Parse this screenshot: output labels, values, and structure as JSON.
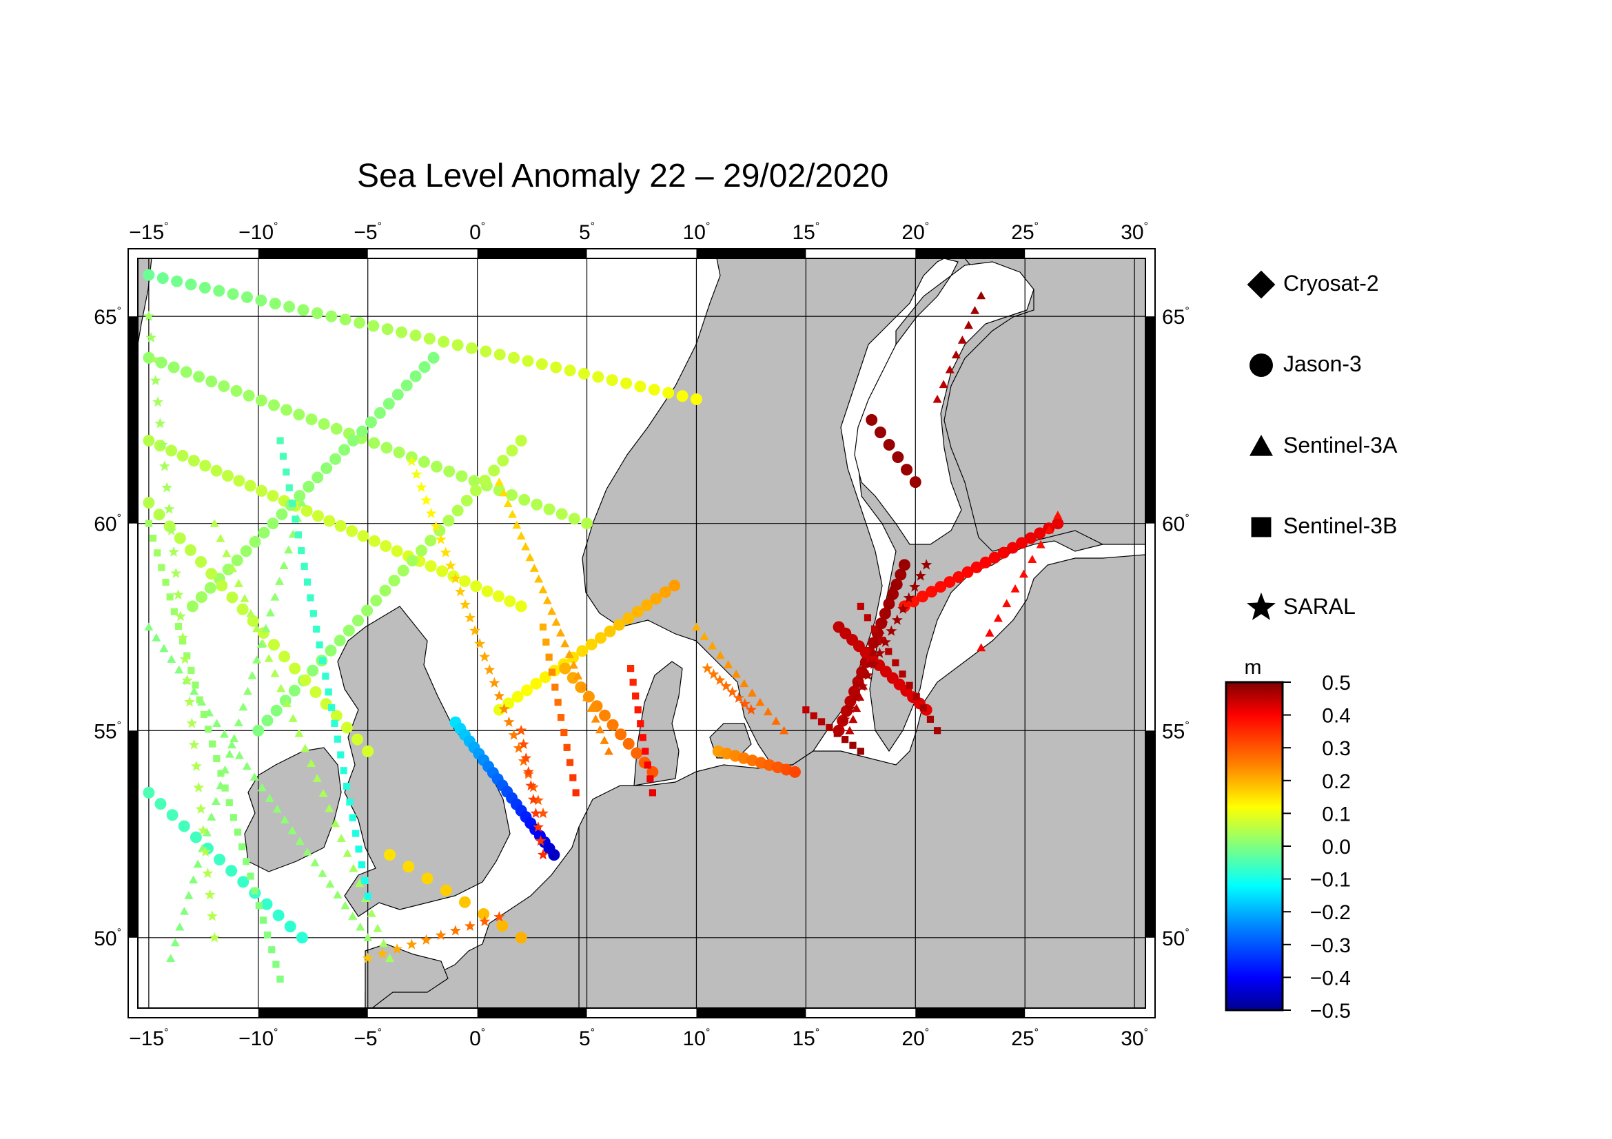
{
  "title": "Sea Level Anomaly 22 – 29/02/2020",
  "map": {
    "lon_range": [
      -15.5,
      30.5
    ],
    "lat_range": [
      48.3,
      66.4
    ],
    "lon_ticks": [
      "−15",
      "−10",
      "−5",
      "0",
      "5",
      "10",
      "15",
      "20",
      "25",
      "30"
    ],
    "lat_ticks": [
      "50",
      "55",
      "60",
      "65"
    ],
    "degree_symbol": "°",
    "land_color": "#bdbdbd",
    "sea_color": "#ffffff"
  },
  "legend": {
    "items": [
      {
        "label": "Cryosat-2",
        "marker": "diamond"
      },
      {
        "label": "Jason-3",
        "marker": "circle"
      },
      {
        "label": "Sentinel-3A",
        "marker": "triangle"
      },
      {
        "label": "Sentinel-3B",
        "marker": "square"
      },
      {
        "label": "SARAL",
        "marker": "star"
      }
    ]
  },
  "colorbar": {
    "unit": "m",
    "labels": [
      "0.5",
      "0.4",
      "0.3",
      "0.2",
      "0.1",
      "0.0",
      "−0.1",
      "−0.2",
      "−0.3",
      "−0.4",
      "−0.5"
    ],
    "min": -0.5,
    "max": 0.5,
    "colors": [
      "#00008f",
      "#0000ff",
      "#0080ff",
      "#00ffff",
      "#80ff80",
      "#ffff00",
      "#ff8000",
      "#ff0000",
      "#800000"
    ]
  },
  "chart_data": {
    "type": "scatter",
    "xlabel": "",
    "ylabel": "",
    "xlim": [
      -15.5,
      30.5
    ],
    "ylim": [
      48.3,
      66.4
    ],
    "value_unit": "m",
    "tracks": [
      {
        "sat": "Jason-3",
        "from": [
          -1,
          55.2
        ],
        "to": [
          3.5,
          52.0
        ],
        "n": 22,
        "v0": -0.15,
        "v1": -0.45
      },
      {
        "sat": "Jason-3",
        "from": [
          -15,
          53.5
        ],
        "to": [
          -8,
          50.0
        ],
        "n": 14,
        "v0": -0.05,
        "v1": -0.08
      },
      {
        "sat": "Jason-3",
        "from": [
          -15,
          62.0
        ],
        "to": [
          2,
          58.0
        ],
        "n": 34,
        "v0": 0.05,
        "v1": 0.1
      },
      {
        "sat": "Jason-3",
        "from": [
          -15,
          64.0
        ],
        "to": [
          5,
          60.0
        ],
        "n": 36,
        "v0": 0.02,
        "v1": 0.05
      },
      {
        "sat": "Jason-3",
        "from": [
          -15,
          66.0
        ],
        "to": [
          10,
          63.0
        ],
        "n": 40,
        "v0": -0.02,
        "v1": 0.12
      },
      {
        "sat": "Jason-3",
        "from": [
          -13,
          58.0
        ],
        "to": [
          -2,
          64.0
        ],
        "n": 28,
        "v0": 0.03,
        "v1": 0.0
      },
      {
        "sat": "Jason-3",
        "from": [
          -10,
          55.0
        ],
        "to": [
          2,
          62.0
        ],
        "n": 30,
        "v0": 0.0,
        "v1": 0.06
      },
      {
        "sat": "Jason-3",
        "from": [
          -15,
          60.5
        ],
        "to": [
          -5,
          54.5
        ],
        "n": 22,
        "v0": 0.05,
        "v1": 0.08
      },
      {
        "sat": "Jason-3",
        "from": [
          1,
          55.5
        ],
        "to": [
          9,
          58.5
        ],
        "n": 20,
        "v0": 0.1,
        "v1": 0.22
      },
      {
        "sat": "Jason-3",
        "from": [
          4,
          56.5
        ],
        "to": [
          8,
          54.0
        ],
        "n": 12,
        "v0": 0.2,
        "v1": 0.3
      },
      {
        "sat": "Jason-3",
        "from": [
          11,
          54.5
        ],
        "to": [
          14.5,
          54.0
        ],
        "n": 10,
        "v0": 0.22,
        "v1": 0.32
      },
      {
        "sat": "Jason-3",
        "from": [
          16.5,
          55.0
        ],
        "to": [
          19.5,
          59.0
        ],
        "n": 18,
        "v0": 0.45,
        "v1": 0.48
      },
      {
        "sat": "Jason-3",
        "from": [
          16.5,
          57.5
        ],
        "to": [
          20.5,
          55.5
        ],
        "n": 14,
        "v0": 0.45,
        "v1": 0.42
      },
      {
        "sat": "Jason-3",
        "from": [
          19.5,
          58.0
        ],
        "to": [
          26.5,
          60.0
        ],
        "n": 18,
        "v0": 0.38,
        "v1": 0.42
      },
      {
        "sat": "Jason-3",
        "from": [
          18,
          62.5
        ],
        "to": [
          20.0,
          61.0
        ],
        "n": 6,
        "v0": 0.48,
        "v1": 0.48
      },
      {
        "sat": "Jason-3",
        "from": [
          -4,
          52.0
        ],
        "to": [
          2,
          50.0
        ],
        "n": 8,
        "v0": 0.15,
        "v1": 0.2
      },
      {
        "sat": "Sentinel-3A",
        "from": [
          -15,
          57.5
        ],
        "to": [
          -5,
          50.0
        ],
        "n": 30,
        "v0": 0.0,
        "v1": 0.02
      },
      {
        "sat": "Sentinel-3A",
        "from": [
          -12,
          60.0
        ],
        "to": [
          -4,
          49.5
        ],
        "n": 30,
        "v0": 0.05,
        "v1": 0.03
      },
      {
        "sat": "Sentinel-3A",
        "from": [
          -8,
          60.5
        ],
        "to": [
          -14,
          49.5
        ],
        "n": 30,
        "v0": 0.02,
        "v1": 0.0
      },
      {
        "sat": "Sentinel-3A",
        "from": [
          1,
          61.0
        ],
        "to": [
          6,
          54.5
        ],
        "n": 26,
        "v0": 0.15,
        "v1": 0.25
      },
      {
        "sat": "Sentinel-3A",
        "from": [
          10,
          57.5
        ],
        "to": [
          14,
          55.0
        ],
        "n": 12,
        "v0": 0.2,
        "v1": 0.28
      },
      {
        "sat": "Sentinel-3A",
        "from": [
          17,
          55.0
        ],
        "to": [
          19,
          58.5
        ],
        "n": 14,
        "v0": 0.45,
        "v1": 0.48
      },
      {
        "sat": "Sentinel-3A",
        "from": [
          21,
          63.0
        ],
        "to": [
          23,
          65.5
        ],
        "n": 8,
        "v0": 0.45,
        "v1": 0.48
      },
      {
        "sat": "Sentinel-3A",
        "from": [
          23,
          57.0
        ],
        "to": [
          26.5,
          60.2
        ],
        "n": 10,
        "v0": 0.4,
        "v1": 0.38
      },
      {
        "sat": "Sentinel-3B",
        "from": [
          -15,
          60.0
        ],
        "to": [
          -9,
          49.0
        ],
        "n": 32,
        "v0": 0.03,
        "v1": 0.0
      },
      {
        "sat": "Sentinel-3B",
        "from": [
          -9,
          62.0
        ],
        "to": [
          -5,
          51.0
        ],
        "n": 30,
        "v0": -0.05,
        "v1": -0.1
      },
      {
        "sat": "Sentinel-3B",
        "from": [
          3,
          57.5
        ],
        "to": [
          4.5,
          53.5
        ],
        "n": 12,
        "v0": 0.2,
        "v1": 0.35
      },
      {
        "sat": "Sentinel-3B",
        "from": [
          7,
          56.5
        ],
        "to": [
          8,
          53.5
        ],
        "n": 10,
        "v0": 0.35,
        "v1": 0.42
      },
      {
        "sat": "Sentinel-3B",
        "from": [
          15,
          55.5
        ],
        "to": [
          17.5,
          54.5
        ],
        "n": 8,
        "v0": 0.45,
        "v1": 0.48
      },
      {
        "sat": "Sentinel-3B",
        "from": [
          17.5,
          58.0
        ],
        "to": [
          21,
          55.0
        ],
        "n": 12,
        "v0": 0.45,
        "v1": 0.47
      },
      {
        "sat": "SARAL",
        "from": [
          -15,
          65.0
        ],
        "to": [
          -12,
          50.0
        ],
        "n": 30,
        "v0": 0.03,
        "v1": 0.05
      },
      {
        "sat": "SARAL",
        "from": [
          -3,
          61.5
        ],
        "to": [
          3,
          53.0
        ],
        "n": 28,
        "v0": 0.1,
        "v1": 0.3
      },
      {
        "sat": "SARAL",
        "from": [
          2,
          55.0
        ],
        "to": [
          3,
          52.0
        ],
        "n": 10,
        "v0": 0.3,
        "v1": 0.35
      },
      {
        "sat": "SARAL",
        "from": [
          10.5,
          56.5
        ],
        "to": [
          12.5,
          55.5
        ],
        "n": 8,
        "v0": 0.25,
        "v1": 0.3
      },
      {
        "sat": "SARAL",
        "from": [
          16.5,
          55.0
        ],
        "to": [
          20.5,
          59.0
        ],
        "n": 16,
        "v0": 0.46,
        "v1": 0.48
      },
      {
        "sat": "SARAL",
        "from": [
          -5,
          49.5
        ],
        "to": [
          1,
          50.5
        ],
        "n": 10,
        "v0": 0.18,
        "v1": 0.3
      }
    ]
  }
}
